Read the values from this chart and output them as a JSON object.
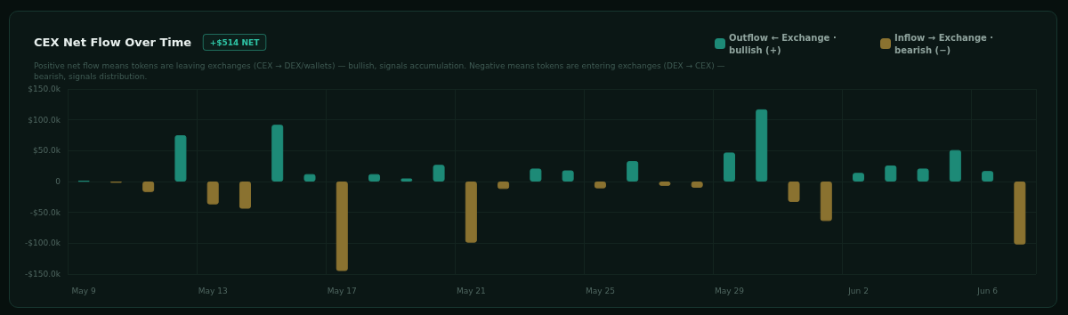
{
  "chart_data": {
    "type": "bar",
    "title": "CEX Net Flow Over Time",
    "subtitle": "Positive net flow means tokens are leaving exchanges (CEX → DEX/wallets) — bullish, signals accumulation. Negative means tokens are entering exchanges (DEX → CEX) — bearish, signals distribution.",
    "annotations": [
      "+$514 NET"
    ],
    "categories": [
      "May 9",
      null,
      null,
      null,
      "May 13",
      null,
      null,
      null,
      "May 17",
      null,
      null,
      null,
      "May 21",
      null,
      null,
      null,
      "May 25",
      null,
      null,
      null,
      "May 29",
      null,
      null,
      null,
      "Jun 2",
      null,
      null,
      null,
      "Jun 6",
      null
    ],
    "stacked": true,
    "series": [
      {
        "name": "Outflow ← Exchange · bullish (+)",
        "color": "#1d8a77",
        "values": [
          1000,
          null,
          null,
          75000,
          null,
          null,
          92000,
          12000,
          null,
          12000,
          5000,
          27000,
          null,
          null,
          21000,
          18000,
          null,
          33000,
          null,
          null,
          47000,
          117000,
          null,
          null,
          14000,
          26000,
          21000,
          51000,
          17000,
          null
        ]
      },
      {
        "name": "Inflow → Exchange · bearish (−)",
        "color": "#8a7230",
        "values": [
          null,
          -2000,
          -17000,
          null,
          -37000,
          -44000,
          null,
          null,
          -145000,
          null,
          null,
          null,
          -99000,
          -12000,
          null,
          null,
          -11000,
          null,
          -7000,
          -10000,
          null,
          null,
          -33000,
          -64000,
          null,
          null,
          null,
          null,
          null,
          -102000
        ]
      }
    ],
    "ylim": [
      -150000,
      150000
    ],
    "yticks": [
      {
        "value": -150000,
        "label": "-$150.0k"
      },
      {
        "value": -100000,
        "label": "-$100.0k"
      },
      {
        "value": -50000,
        "label": "-$50.0k"
      },
      0,
      {
        "value": 50000,
        "label": "$50.0k"
      },
      {
        "value": 100000,
        "label": "$100.0k"
      },
      {
        "value": 150000,
        "label": "$150.0k"
      }
    ],
    "grid": true,
    "legend": "top right"
  }
}
